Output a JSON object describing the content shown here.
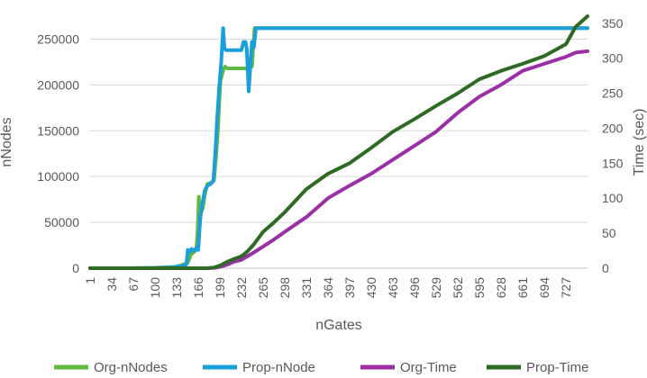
{
  "chart_data": {
    "type": "line",
    "xlabel": "nGates",
    "ylabel": "nNodes",
    "y2label": "Time (sec)",
    "x_range": [
      1,
      760
    ],
    "x_tick_labels": [
      "1",
      "34",
      "67",
      "100",
      "133",
      "166",
      "199",
      "232",
      "265",
      "298",
      "331",
      "364",
      "397",
      "430",
      "463",
      "496",
      "529",
      "562",
      "595",
      "628",
      "661",
      "694",
      "727"
    ],
    "ylim": [
      0,
      275000
    ],
    "y_ticks": [
      0,
      50000,
      100000,
      150000,
      200000,
      250000
    ],
    "y_tick_labels": [
      "0",
      "50000",
      "100000",
      "150000",
      "200000",
      "250000"
    ],
    "y2lim": [
      0,
      360
    ],
    "y2_ticks": [
      0,
      50,
      100,
      150,
      200,
      250,
      300,
      350
    ],
    "y2_tick_labels": [
      "0",
      "50",
      "100",
      "150",
      "200",
      "250",
      "300",
      "350"
    ],
    "grid": "horizontal",
    "legend_position": "bottom",
    "series": [
      {
        "name": "Org-nNodes",
        "axis": "left",
        "color": "#5fb842",
        "x": [
          1,
          60,
          100,
          130,
          140,
          150,
          155,
          160,
          163,
          165,
          167,
          168,
          170,
          173,
          176,
          180,
          185,
          190,
          193,
          196,
          198,
          200,
          203,
          205,
          207,
          210,
          220,
          240,
          243,
          245,
          248,
          252,
          256,
          760
        ],
        "y": [
          0,
          0,
          500,
          1500,
          3000,
          6000,
          15000,
          18000,
          20000,
          40000,
          78000,
          45000,
          60000,
          66000,
          80000,
          92000,
          93000,
          96000,
          120000,
          150000,
          180000,
          205000,
          213000,
          218000,
          220000,
          218000,
          218000,
          218000,
          221000,
          219000,
          220000,
          262000,
          262000,
          262000
        ]
      },
      {
        "name": "Prop-nNode",
        "axis": "left",
        "color": "#1a9fdb",
        "x": [
          1,
          60,
          100,
          130,
          140,
          148,
          150,
          153,
          156,
          160,
          163,
          166,
          169,
          172,
          176,
          180,
          185,
          189,
          192,
          195,
          198,
          201,
          204,
          206,
          208,
          212,
          225,
          232,
          235,
          238,
          240,
          243,
          248,
          251,
          254,
          258,
          760
        ],
        "y": [
          0,
          0,
          300,
          1000,
          2500,
          4000,
          20000,
          18000,
          21000,
          19000,
          22000,
          20000,
          55000,
          70000,
          85000,
          90000,
          92000,
          95000,
          125000,
          165000,
          198000,
          225000,
          262000,
          240000,
          238000,
          238000,
          238000,
          238000,
          247000,
          247000,
          240000,
          193000,
          247000,
          241000,
          262000,
          262000,
          262000
        ]
      },
      {
        "name": "Org-Time",
        "axis": "right",
        "color": "#9b2fa5",
        "x": [
          1,
          100,
          150,
          180,
          190,
          200,
          210,
          220,
          232,
          250,
          265,
          280,
          298,
          331,
          364,
          397,
          430,
          463,
          496,
          529,
          562,
          595,
          628,
          661,
          694,
          727,
          742,
          760
        ],
        "y": [
          0,
          0,
          0,
          0,
          0.5,
          2,
          5,
          9,
          12,
          22,
          31,
          40,
          52,
          73,
          100,
          118,
          135,
          155,
          175,
          195,
          222,
          245,
          262,
          282,
          292,
          302,
          308,
          310
        ]
      },
      {
        "name": "Prop-Time",
        "axis": "right",
        "color": "#2e6a23",
        "x": [
          1,
          100,
          150,
          180,
          190,
          200,
          210,
          220,
          232,
          240,
          250,
          265,
          280,
          298,
          331,
          364,
          397,
          430,
          463,
          496,
          529,
          562,
          595,
          628,
          661,
          694,
          727,
          742,
          760
        ],
        "y": [
          0,
          0,
          0,
          0,
          1,
          4,
          9,
          13,
          17,
          23,
          33,
          52,
          64,
          80,
          113,
          135,
          150,
          172,
          195,
          213,
          232,
          250,
          270,
          282,
          292,
          303,
          320,
          345,
          360
        ]
      }
    ]
  }
}
